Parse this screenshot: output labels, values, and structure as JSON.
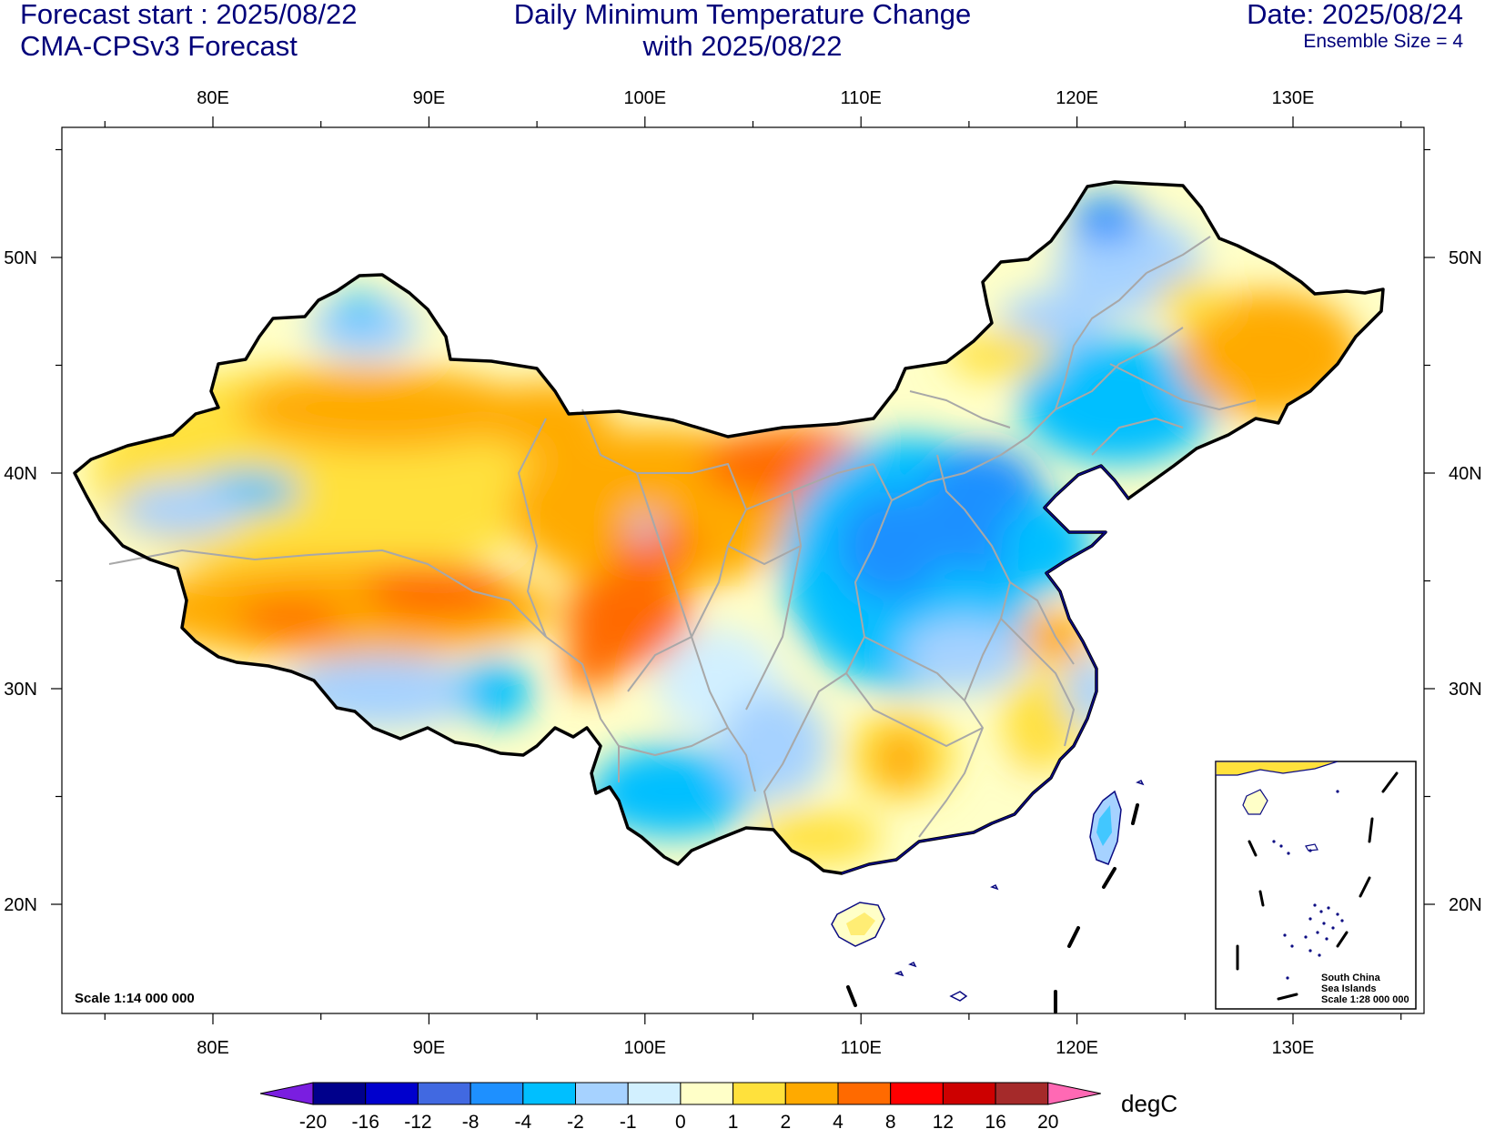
{
  "header": {
    "forecast_start": "Forecast start : 2025/08/22",
    "model": "CMA-CPSv3 Forecast",
    "title_line1": "Daily Minimum Temperature Change",
    "title_line2": "with 2025/08/22",
    "date": "Date: 2025/08/24",
    "ensemble": "Ensemble Size = 4"
  },
  "map": {
    "lon_labels": [
      "80E",
      "90E",
      "100E",
      "110E",
      "120E",
      "130E"
    ],
    "lat_labels": [
      "50N",
      "40N",
      "30N",
      "20N"
    ],
    "scale": "Scale 1:14 000 000",
    "inset": {
      "line1": "South China",
      "line2": "Sea Islands",
      "line3": "Scale 1:28 000 000"
    },
    "border_color": "#000000",
    "province_color": "#a8a8a8",
    "coast_color": "#0a0a82"
  },
  "colorbar": {
    "unit": "degC",
    "labels": [
      "-20",
      "-16",
      "-12",
      "-8",
      "-4",
      "-2",
      "-1",
      "0",
      "1",
      "2",
      "4",
      "8",
      "12",
      "16",
      "20"
    ],
    "colors": [
      "#7a1ee0",
      "#00008b",
      "#0000cd",
      "#4169e1",
      "#1e90ff",
      "#00bfff",
      "#a6d2ff",
      "#d2f0ff",
      "#ffffc8",
      "#ffe13c",
      "#ffaa00",
      "#ff6a00",
      "#ff0000",
      "#cd0000",
      "#a52a2a",
      "#ff69b4"
    ]
  }
}
